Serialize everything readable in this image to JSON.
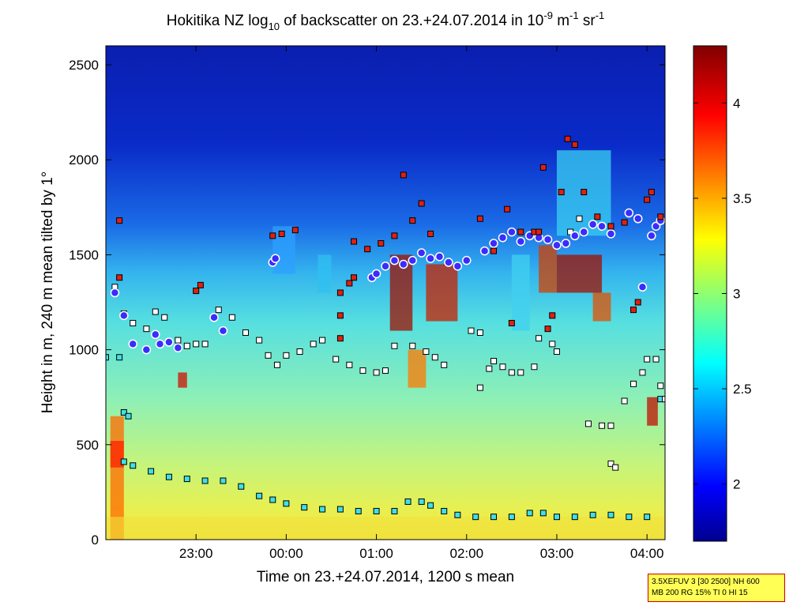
{
  "chart_data": {
    "type": "heatmap",
    "title": {
      "prefix": "Hokitika NZ log",
      "sub": "10",
      "middle": " of backscatter on 23.+24.07.2014 in 10",
      "exp1": "-9",
      "unit_m": " m",
      "exp2": "-1",
      "unit_sr": " sr",
      "exp3": "-1"
    },
    "xlabel": "Time on 23.+24.07.2014, 1200 s mean",
    "ylabel": "Height in m, 240 m mean tilted by 1°",
    "x_ticks": [
      {
        "h": 23.0,
        "label": "23:00"
      },
      {
        "h": 24.0,
        "label": "00:00"
      },
      {
        "h": 25.0,
        "label": "01:00"
      },
      {
        "h": 26.0,
        "label": "02:00"
      },
      {
        "h": 27.0,
        "label": "03:00"
      },
      {
        "h": 28.0,
        "label": "04:00"
      }
    ],
    "y_ticks": [
      0,
      500,
      1000,
      1500,
      2000,
      2500
    ],
    "xlim_hours": [
      22.0,
      28.2
    ],
    "ylim": [
      0,
      2600
    ],
    "colorbar": {
      "range": [
        1.7,
        4.3
      ],
      "ticks": [
        2,
        2.5,
        3,
        3.5,
        4
      ],
      "tick_labels": [
        "2",
        "2.5",
        "3",
        "3.5",
        "4"
      ],
      "colormap": "jet"
    },
    "cloud_base_red_markers": [
      [
        22.15,
        1680
      ],
      [
        22.15,
        1380
      ],
      [
        23.0,
        1310
      ],
      [
        23.05,
        1340
      ],
      [
        23.85,
        1600
      ],
      [
        23.95,
        1610
      ],
      [
        24.1,
        1630
      ],
      [
        24.6,
        1300
      ],
      [
        24.6,
        1180
      ],
      [
        24.7,
        1350
      ],
      [
        24.75,
        1380
      ],
      [
        24.6,
        1060
      ],
      [
        24.75,
        1570
      ],
      [
        24.9,
        1530
      ],
      [
        25.05,
        1560
      ],
      [
        25.2,
        1600
      ],
      [
        25.3,
        1920
      ],
      [
        25.4,
        1680
      ],
      [
        25.5,
        1770
      ],
      [
        25.6,
        1610
      ],
      [
        26.15,
        1690
      ],
      [
        26.3,
        1520
      ],
      [
        26.45,
        1740
      ],
      [
        26.5,
        1140
      ],
      [
        26.6,
        1620
      ],
      [
        26.75,
        1620
      ],
      [
        26.8,
        1620
      ],
      [
        26.85,
        1960
      ],
      [
        26.9,
        1110
      ],
      [
        26.95,
        1180
      ],
      [
        27.05,
        1830
      ],
      [
        27.12,
        2110
      ],
      [
        27.2,
        2080
      ],
      [
        27.3,
        1830
      ],
      [
        27.45,
        1700
      ],
      [
        27.6,
        1650
      ],
      [
        27.75,
        1670
      ],
      [
        27.85,
        1210
      ],
      [
        27.9,
        1250
      ],
      [
        28.0,
        1790
      ],
      [
        28.05,
        1830
      ],
      [
        28.15,
        1700
      ]
    ],
    "cloud_base_blue_markers": [
      [
        22.1,
        1300
      ],
      [
        22.2,
        1180
      ],
      [
        22.3,
        1030
      ],
      [
        22.45,
        1000
      ],
      [
        22.55,
        1080
      ],
      [
        22.6,
        1030
      ],
      [
        22.7,
        1040
      ],
      [
        22.8,
        1010
      ],
      [
        23.2,
        1170
      ],
      [
        23.3,
        1100
      ],
      [
        23.85,
        1460
      ],
      [
        23.88,
        1480
      ],
      [
        24.95,
        1380
      ],
      [
        25.0,
        1400
      ],
      [
        25.1,
        1440
      ],
      [
        25.2,
        1470
      ],
      [
        25.3,
        1450
      ],
      [
        25.4,
        1470
      ],
      [
        25.5,
        1510
      ],
      [
        25.6,
        1480
      ],
      [
        25.7,
        1490
      ],
      [
        25.8,
        1460
      ],
      [
        25.9,
        1440
      ],
      [
        26.0,
        1470
      ],
      [
        26.2,
        1520
      ],
      [
        26.3,
        1560
      ],
      [
        26.4,
        1590
      ],
      [
        26.5,
        1620
      ],
      [
        26.6,
        1570
      ],
      [
        26.7,
        1600
      ],
      [
        26.8,
        1590
      ],
      [
        26.9,
        1580
      ],
      [
        27.0,
        1550
      ],
      [
        27.1,
        1560
      ],
      [
        27.2,
        1600
      ],
      [
        27.3,
        1620
      ],
      [
        27.4,
        1660
      ],
      [
        27.5,
        1650
      ],
      [
        27.6,
        1610
      ],
      [
        27.8,
        1720
      ],
      [
        27.9,
        1690
      ],
      [
        27.95,
        1330
      ],
      [
        28.05,
        1600
      ],
      [
        28.1,
        1650
      ],
      [
        28.15,
        1680
      ]
    ],
    "mixing_layer_white_markers": [
      [
        22.1,
        1330
      ],
      [
        22.2,
        1190
      ],
      [
        22.3,
        1140
      ],
      [
        22.45,
        1110
      ],
      [
        22.55,
        1200
      ],
      [
        22.65,
        1170
      ],
      [
        22.8,
        1050
      ],
      [
        22.9,
        1020
      ],
      [
        23.0,
        1030
      ],
      [
        23.1,
        1030
      ],
      [
        23.25,
        1210
      ],
      [
        23.4,
        1170
      ],
      [
        23.55,
        1090
      ],
      [
        23.7,
        1050
      ],
      [
        23.8,
        970
      ],
      [
        23.9,
        920
      ],
      [
        24.0,
        970
      ],
      [
        24.15,
        990
      ],
      [
        24.3,
        1030
      ],
      [
        24.4,
        1050
      ],
      [
        24.55,
        950
      ],
      [
        24.7,
        920
      ],
      [
        24.85,
        890
      ],
      [
        25.0,
        880
      ],
      [
        25.1,
        890
      ],
      [
        25.2,
        1020
      ],
      [
        25.4,
        1020
      ],
      [
        25.55,
        990
      ],
      [
        25.65,
        960
      ],
      [
        25.75,
        920
      ],
      [
        26.05,
        1100
      ],
      [
        26.15,
        1090
      ],
      [
        26.15,
        800
      ],
      [
        26.25,
        900
      ],
      [
        26.3,
        940
      ],
      [
        26.4,
        910
      ],
      [
        26.5,
        880
      ],
      [
        26.6,
        880
      ],
      [
        26.75,
        910
      ],
      [
        26.8,
        1060
      ],
      [
        26.95,
        1030
      ],
      [
        27.0,
        990
      ],
      [
        27.15,
        1620
      ],
      [
        27.25,
        1690
      ],
      [
        27.35,
        610
      ],
      [
        27.5,
        600
      ],
      [
        27.6,
        600
      ],
      [
        27.6,
        400
      ],
      [
        27.65,
        380
      ],
      [
        27.75,
        730
      ],
      [
        27.85,
        820
      ],
      [
        27.95,
        880
      ],
      [
        28.0,
        950
      ],
      [
        28.1,
        950
      ],
      [
        28.15,
        810
      ],
      [
        28.2,
        740
      ]
    ],
    "surface_layer_cyan_markers": [
      [
        22.0,
        960
      ],
      [
        22.15,
        960
      ],
      [
        22.2,
        670
      ],
      [
        22.25,
        650
      ],
      [
        22.2,
        410
      ],
      [
        22.3,
        390
      ],
      [
        22.5,
        360
      ],
      [
        22.7,
        330
      ],
      [
        22.9,
        320
      ],
      [
        23.1,
        310
      ],
      [
        23.3,
        310
      ],
      [
        23.5,
        280
      ],
      [
        23.7,
        230
      ],
      [
        23.85,
        210
      ],
      [
        24.0,
        190
      ],
      [
        24.2,
        170
      ],
      [
        24.4,
        160
      ],
      [
        24.6,
        160
      ],
      [
        24.8,
        150
      ],
      [
        25.0,
        150
      ],
      [
        25.2,
        150
      ],
      [
        25.35,
        200
      ],
      [
        25.5,
        200
      ],
      [
        25.6,
        180
      ],
      [
        25.75,
        150
      ],
      [
        25.9,
        130
      ],
      [
        26.1,
        120
      ],
      [
        26.3,
        120
      ],
      [
        26.5,
        120
      ],
      [
        26.7,
        140
      ],
      [
        26.85,
        140
      ],
      [
        27.0,
        120
      ],
      [
        27.2,
        120
      ],
      [
        27.4,
        130
      ],
      [
        27.6,
        130
      ],
      [
        27.8,
        120
      ],
      [
        28.0,
        120
      ],
      [
        28.15,
        740
      ]
    ]
  },
  "settings": {
    "line1": "3.5XEFUV 3 [30 2500] NH 600",
    "line2": "MB 200 RG 15% TI 0 HI 15"
  }
}
